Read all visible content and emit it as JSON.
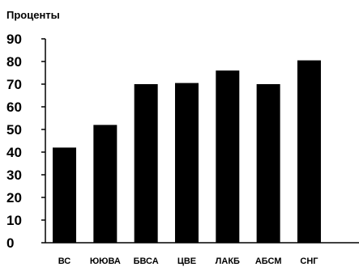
{
  "chart_data": {
    "type": "bar",
    "title": "",
    "xlabel": "",
    "ylabel": "Проценты",
    "categories": [
      "ВС",
      "ЮЮВА",
      "БВСА",
      "ЦВЕ",
      "ЛАКБ",
      "АБСМ",
      "СНГ"
    ],
    "values": [
      42,
      52,
      70,
      70.5,
      76,
      70,
      80.5
    ],
    "ylim": [
      0,
      90
    ],
    "yticks": [
      "0",
      "10",
      "20",
      "30",
      "40",
      "50",
      "60",
      "70",
      "80",
      "90"
    ],
    "grid": false,
    "bar_color": "#000000"
  }
}
